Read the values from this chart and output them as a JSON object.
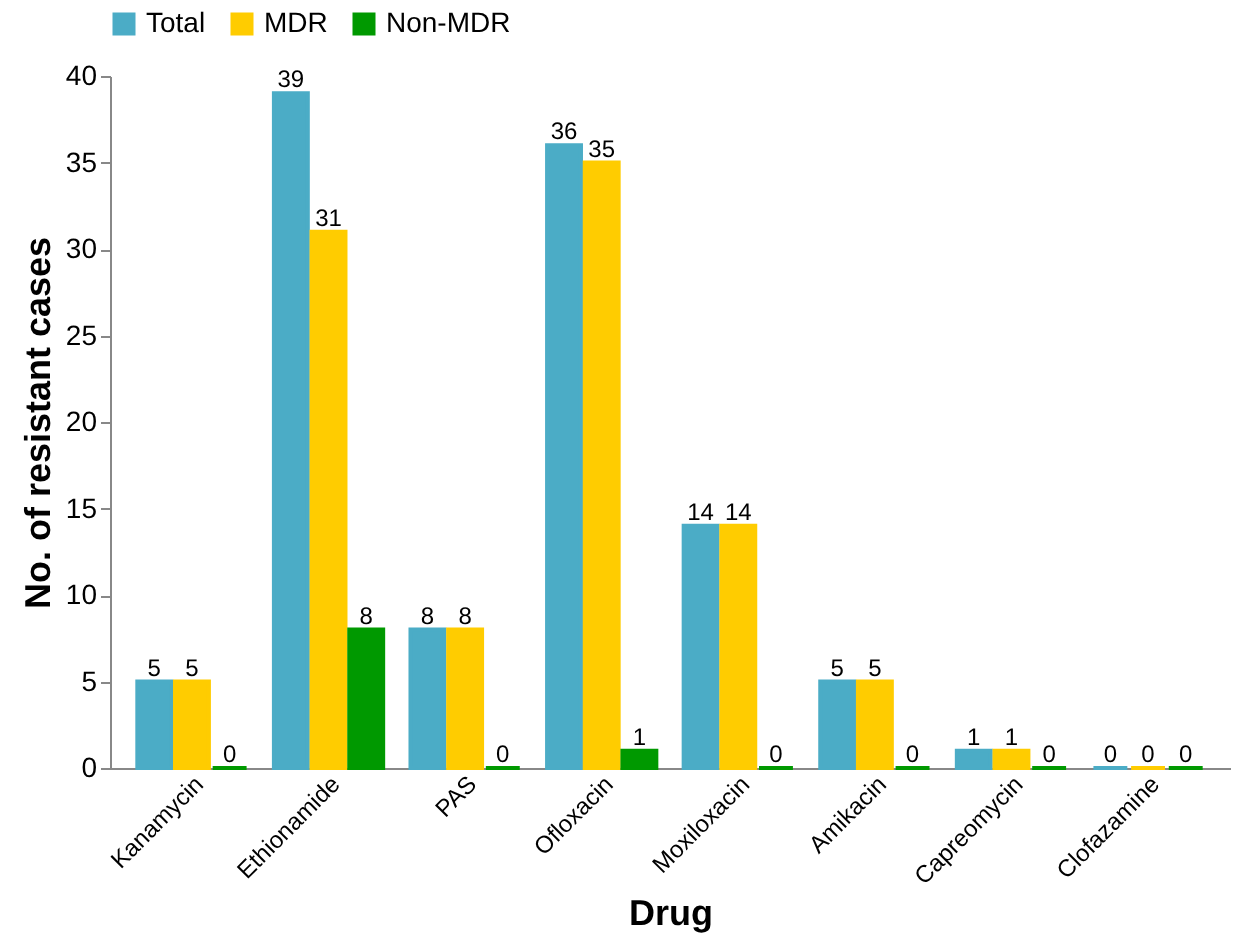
{
  "chart_data": {
    "type": "bar",
    "xlabel": "Drug",
    "ylabel": "No. of resistant cases",
    "categories": [
      "Kanamycin",
      "Ethionamide",
      "PAS",
      "Ofloxacin",
      "Moxiloxacin",
      "Amikacin",
      "Capreomycin",
      "Clofazamine"
    ],
    "series": [
      {
        "name": "Total",
        "color": "#4bacc6",
        "values": [
          5,
          39,
          8,
          36,
          14,
          5,
          1,
          0
        ]
      },
      {
        "name": "MDR",
        "color": "#ffcc00",
        "values": [
          5,
          31,
          8,
          35,
          14,
          5,
          1,
          0
        ]
      },
      {
        "name": "Non-MDR",
        "color": "#009900",
        "values": [
          0,
          8,
          0,
          1,
          0,
          0,
          0,
          0
        ]
      }
    ],
    "ylim": [
      0,
      40
    ],
    "yticks": [
      0,
      5,
      10,
      15,
      20,
      25,
      30,
      35,
      40
    ],
    "grid": false,
    "legend": "top",
    "data_labels": true
  }
}
